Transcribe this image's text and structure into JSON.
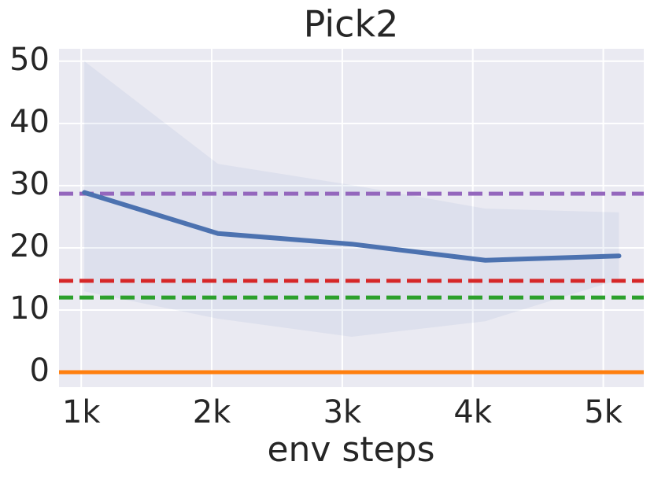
{
  "chart_data": {
    "type": "line",
    "title": "Pick2",
    "x_label": "env steps",
    "x": [
      1024,
      2048,
      3072,
      4096,
      5120
    ],
    "series": [
      {
        "color": "#4c72b0",
        "values": [
          28.9,
          22.3,
          20.6,
          18.0,
          18.7
        ],
        "band_lower": [
          13.0,
          8.6,
          5.7,
          8.2,
          14.9
        ],
        "band_upper": [
          50.0,
          33.5,
          30.1,
          26.3,
          25.7
        ]
      }
    ],
    "hlines": [
      {
        "value": 28.7,
        "color": "#9467bd",
        "dashed": true
      },
      {
        "value": 14.7,
        "color": "#d62728",
        "dashed": true
      },
      {
        "value": 12.0,
        "color": "#2ca02c",
        "dashed": true
      },
      {
        "value": 0,
        "color": "#ff7f0e",
        "dashed": false
      }
    ],
    "xlim": [
      830,
      5310
    ],
    "ylim": [
      -2.4,
      52
    ],
    "xticks": [
      {
        "value": 1000,
        "label": "1k"
      },
      {
        "value": 2000,
        "label": "2k"
      },
      {
        "value": 3000,
        "label": "3k"
      },
      {
        "value": 4000,
        "label": "4k"
      },
      {
        "value": 5000,
        "label": "5k"
      }
    ],
    "yticks": [
      0,
      10,
      20,
      30,
      40,
      50
    ],
    "grid": true,
    "background": "#eaeaf2"
  }
}
